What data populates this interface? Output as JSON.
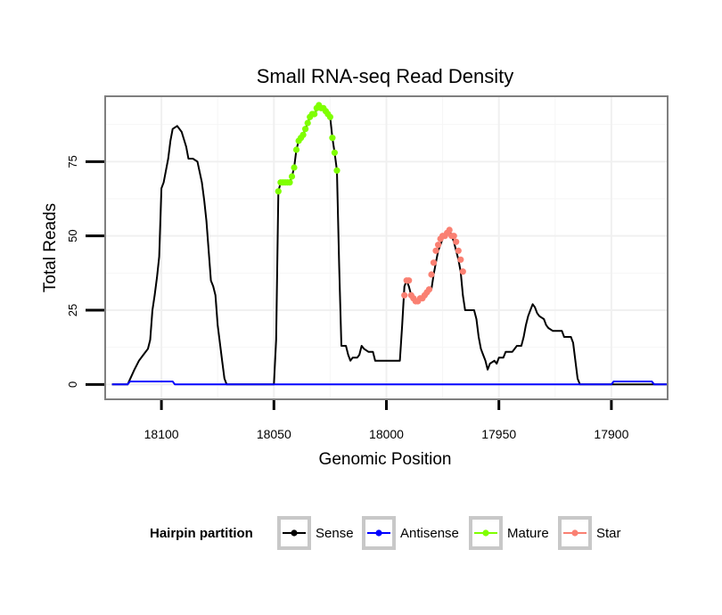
{
  "chart_data": {
    "type": "line",
    "title": "Small RNA-seq Read Density",
    "xlabel": "Genomic Position",
    "ylabel": "Total Reads",
    "xlim": [
      18125,
      17875
    ],
    "ylim": [
      -5,
      97
    ],
    "x_reversed": true,
    "x_ticks": [
      18100,
      18050,
      18000,
      17950,
      17900
    ],
    "y_ticks": [
      0,
      25,
      50,
      75
    ],
    "grid": true,
    "legend": {
      "title": "Hairpin partition",
      "position": "bottom",
      "entries": [
        "Sense",
        "Antisense",
        "Mature",
        "Star"
      ]
    },
    "series": [
      {
        "name": "Sense",
        "color": "#000000",
        "marker": "line",
        "points": [
          [
            18122,
            0
          ],
          [
            18115,
            0
          ],
          [
            18112,
            5
          ],
          [
            18110,
            8
          ],
          [
            18108,
            10
          ],
          [
            18106,
            12
          ],
          [
            18105,
            15
          ],
          [
            18104,
            25
          ],
          [
            18103,
            30
          ],
          [
            18102,
            36
          ],
          [
            18101,
            43
          ],
          [
            18100,
            66
          ],
          [
            18099,
            68
          ],
          [
            18097,
            76
          ],
          [
            18096,
            82
          ],
          [
            18095,
            86
          ],
          [
            18093,
            87
          ],
          [
            18091,
            85
          ],
          [
            18089,
            80
          ],
          [
            18088,
            76
          ],
          [
            18086,
            76
          ],
          [
            18084,
            75
          ],
          [
            18082,
            68
          ],
          [
            18081,
            62
          ],
          [
            18080,
            55
          ],
          [
            18079,
            45
          ],
          [
            18078,
            35
          ],
          [
            18077,
            33
          ],
          [
            18076,
            30
          ],
          [
            18075,
            20
          ],
          [
            18074,
            14
          ],
          [
            18073,
            8
          ],
          [
            18072,
            2
          ],
          [
            18071,
            0
          ],
          [
            18060,
            0
          ],
          [
            18050,
            0
          ],
          [
            18049,
            15
          ],
          [
            18048,
            65
          ],
          [
            18047,
            68
          ],
          [
            18045,
            68
          ],
          [
            18043,
            68
          ],
          [
            18042,
            70
          ],
          [
            18041,
            73
          ],
          [
            18040,
            79
          ],
          [
            18039,
            82
          ],
          [
            18037,
            84
          ],
          [
            18036,
            86
          ],
          [
            18034,
            90
          ],
          [
            18032,
            91
          ],
          [
            18030,
            94
          ],
          [
            18028,
            93
          ],
          [
            18026,
            92
          ],
          [
            18025,
            90
          ],
          [
            18024,
            83
          ],
          [
            18023,
            78
          ],
          [
            18022,
            72
          ],
          [
            18021,
            40
          ],
          [
            18020,
            13
          ],
          [
            18018,
            13
          ],
          [
            18017,
            10
          ],
          [
            18016,
            8
          ],
          [
            18015,
            9
          ],
          [
            18013,
            9
          ],
          [
            18012,
            10
          ],
          [
            18011,
            13
          ],
          [
            18010,
            12
          ],
          [
            18008,
            11
          ],
          [
            18006,
            11
          ],
          [
            18005,
            8
          ],
          [
            18003,
            8
          ],
          [
            17998,
            8
          ],
          [
            17994,
            8
          ],
          [
            17993,
            20
          ],
          [
            17992,
            33
          ],
          [
            17991,
            35
          ],
          [
            17990,
            33
          ],
          [
            17989,
            30
          ],
          [
            17988,
            29
          ],
          [
            17986,
            28
          ],
          [
            17984,
            29
          ],
          [
            17982,
            30
          ],
          [
            17980,
            32
          ],
          [
            17979,
            37
          ],
          [
            17978,
            41
          ],
          [
            17977,
            45
          ],
          [
            17976,
            47
          ],
          [
            17975,
            49
          ],
          [
            17974,
            50
          ],
          [
            17972,
            52
          ],
          [
            17971,
            50
          ],
          [
            17970,
            48
          ],
          [
            17969,
            45
          ],
          [
            17968,
            42
          ],
          [
            17967,
            38
          ],
          [
            17966,
            30
          ],
          [
            17965,
            25
          ],
          [
            17961,
            25
          ],
          [
            17960,
            22
          ],
          [
            17959,
            16
          ],
          [
            17958,
            12
          ],
          [
            17957,
            10
          ],
          [
            17956,
            8
          ],
          [
            17955,
            5
          ],
          [
            17954,
            7
          ],
          [
            17952,
            8
          ],
          [
            17951,
            7
          ],
          [
            17950,
            9
          ],
          [
            17948,
            9
          ],
          [
            17947,
            11
          ],
          [
            17944,
            11
          ],
          [
            17942,
            13
          ],
          [
            17940,
            13
          ],
          [
            17939,
            16
          ],
          [
            17938,
            20
          ],
          [
            17937,
            23
          ],
          [
            17936,
            25
          ],
          [
            17935,
            27
          ],
          [
            17934,
            26
          ],
          [
            17933,
            24
          ],
          [
            17932,
            23
          ],
          [
            17930,
            22
          ],
          [
            17929,
            20
          ],
          [
            17928,
            19
          ],
          [
            17926,
            18
          ],
          [
            17922,
            18
          ],
          [
            17921,
            16
          ],
          [
            17918,
            16
          ],
          [
            17917,
            14
          ],
          [
            17916,
            8
          ],
          [
            17915,
            2
          ],
          [
            17914,
            0
          ],
          [
            17900,
            0
          ],
          [
            17875,
            0
          ]
        ]
      },
      {
        "name": "Antisense",
        "color": "#0000ff",
        "marker": "line",
        "points": [
          [
            18122,
            0
          ],
          [
            18115,
            0
          ],
          [
            18114,
            1
          ],
          [
            18095,
            1
          ],
          [
            18094,
            0
          ],
          [
            17900,
            0
          ],
          [
            17899,
            1
          ],
          [
            17882,
            1
          ],
          [
            17881,
            0
          ],
          [
            17875,
            0
          ]
        ]
      },
      {
        "name": "Mature",
        "color": "#7fff00",
        "marker": "points",
        "points": [
          [
            18048,
            65
          ],
          [
            18047,
            68
          ],
          [
            18046,
            68
          ],
          [
            18045,
            68
          ],
          [
            18044,
            68
          ],
          [
            18043,
            68
          ],
          [
            18042,
            70
          ],
          [
            18041,
            73
          ],
          [
            18040,
            79
          ],
          [
            18039,
            82
          ],
          [
            18038,
            83
          ],
          [
            18037,
            84
          ],
          [
            18036,
            86
          ],
          [
            18035,
            88
          ],
          [
            18034,
            90
          ],
          [
            18033,
            91
          ],
          [
            18032,
            91
          ],
          [
            18031,
            93
          ],
          [
            18030,
            94
          ],
          [
            18029,
            93
          ],
          [
            18028,
            93
          ],
          [
            18027,
            92
          ],
          [
            18026,
            91
          ],
          [
            18025,
            90
          ],
          [
            18024,
            83
          ],
          [
            18023,
            78
          ],
          [
            18022,
            72
          ]
        ]
      },
      {
        "name": "Star",
        "color": "#fa8072",
        "marker": "points",
        "points": [
          [
            17992,
            30
          ],
          [
            17991,
            35
          ],
          [
            17990,
            35
          ],
          [
            17989,
            30
          ],
          [
            17988,
            29
          ],
          [
            17987,
            28
          ],
          [
            17986,
            28
          ],
          [
            17985,
            29
          ],
          [
            17984,
            29
          ],
          [
            17983,
            30
          ],
          [
            17982,
            31
          ],
          [
            17981,
            32
          ],
          [
            17980,
            37
          ],
          [
            17979,
            41
          ],
          [
            17978,
            45
          ],
          [
            17977,
            47
          ],
          [
            17976,
            49
          ],
          [
            17975,
            50
          ],
          [
            17974,
            50
          ],
          [
            17973,
            51
          ],
          [
            17972,
            52
          ],
          [
            17971,
            50
          ],
          [
            17970,
            50
          ],
          [
            17969,
            48
          ],
          [
            17968,
            45
          ],
          [
            17967,
            42
          ],
          [
            17966,
            38
          ]
        ]
      }
    ]
  }
}
